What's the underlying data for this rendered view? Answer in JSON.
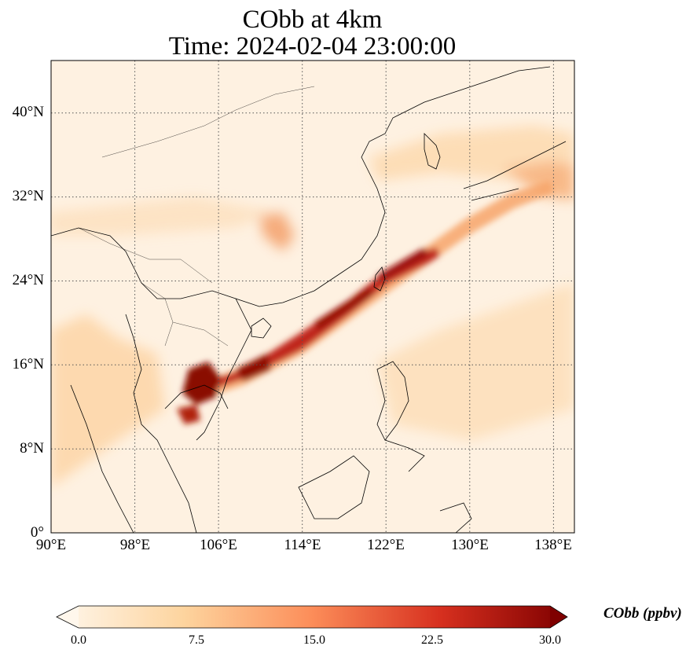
{
  "title_line1": "CObb at 4km",
  "title_line2": "Time: 2024-02-04 23:00:00",
  "map": {
    "lon_range": [
      90,
      140
    ],
    "lat_range": [
      0,
      45
    ],
    "gridlines": true,
    "x_ticks": [
      "90°E",
      "98°E",
      "106°E",
      "114°E",
      "122°E",
      "130°E",
      "138°E"
    ],
    "y_ticks": [
      "0°",
      "8°N",
      "16°N",
      "24°N",
      "32°N",
      "40°N"
    ],
    "colormap": "OrRd"
  },
  "colorbar": {
    "label": "CObb (ppbv)",
    "min": 0.0,
    "max": 30.0,
    "ticks": [
      "0.0",
      "7.5",
      "15.0",
      "22.5",
      "30.0"
    ],
    "extend": "both",
    "colors": [
      "#fff7ec",
      "#fdd49e",
      "#fc8d59",
      "#d7301f",
      "#7f0000"
    ]
  }
}
